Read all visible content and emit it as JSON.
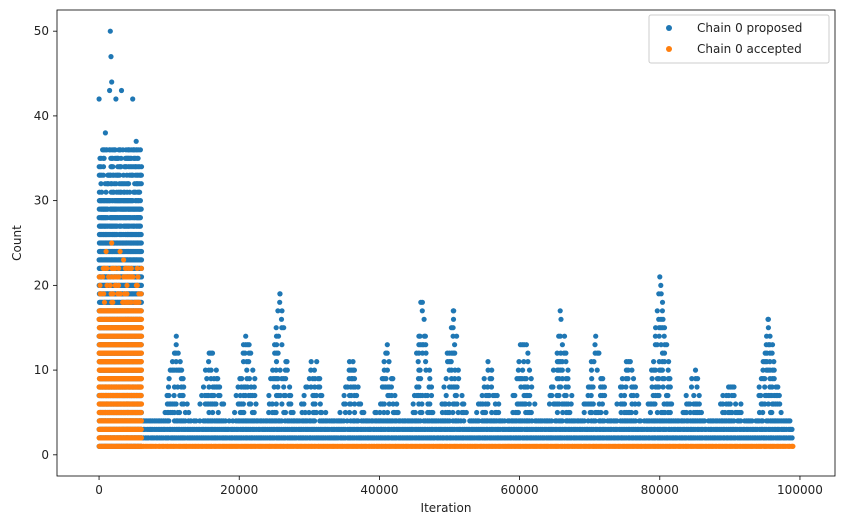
{
  "chart_data": {
    "type": "scatter",
    "title": "",
    "xlabel": "Iteration",
    "ylabel": "Count",
    "xlim": [
      -6000,
      105000
    ],
    "ylim": [
      -2.5,
      52.5
    ],
    "xticks": [
      0,
      20000,
      40000,
      60000,
      80000,
      100000
    ],
    "yticks": [
      0,
      10,
      20,
      30,
      40,
      50
    ],
    "grid": false,
    "legend_position": "top-right",
    "series": [
      {
        "name": "Chain 0 proposed",
        "color": "#1f77b4",
        "description_points": [
          {
            "x": 0,
            "y": 42
          },
          {
            "x": 900,
            "y": 38
          },
          {
            "x": 1600,
            "y": 50
          },
          {
            "x": 1700,
            "y": 47
          },
          {
            "x": 1800,
            "y": 44
          },
          {
            "x": 1500,
            "y": 43
          },
          {
            "x": 2400,
            "y": 42
          },
          {
            "x": 3200,
            "y": 43
          },
          {
            "x": 4800,
            "y": 42
          },
          {
            "x": 5300,
            "y": 37
          },
          {
            "x": 25800,
            "y": 19
          },
          {
            "x": 45900,
            "y": 18
          },
          {
            "x": 50600,
            "y": 17
          },
          {
            "x": 65800,
            "y": 17
          },
          {
            "x": 80000,
            "y": 21
          },
          {
            "x": 95500,
            "y": 16
          }
        ]
      },
      {
        "name": "Chain 0 accepted",
        "color": "#ff7f0e",
        "description_points": [
          {
            "x": 1800,
            "y": 25
          },
          {
            "x": 1000,
            "y": 24
          },
          {
            "x": 3000,
            "y": 24
          },
          {
            "x": 3500,
            "y": 23
          },
          {
            "x": 6000,
            "y": 1
          },
          {
            "x": 99000,
            "y": 1
          }
        ]
      }
    ]
  }
}
